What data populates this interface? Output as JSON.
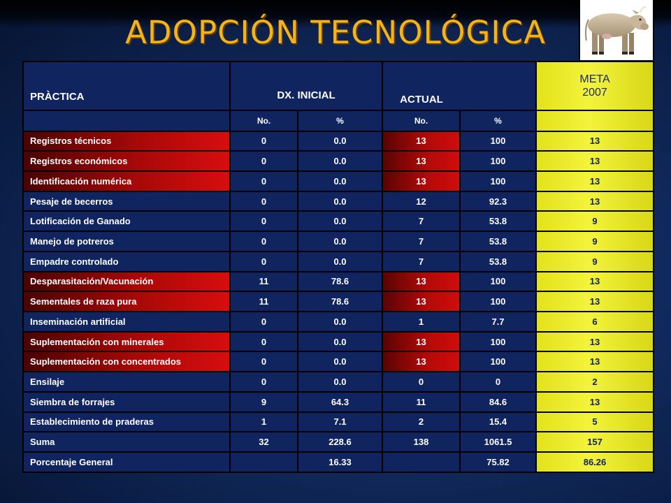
{
  "title": "ADOPCIÓN TECNOLÓGICA",
  "image_alt": "cow-illustration",
  "table": {
    "headers": {
      "practice": "PRÀCTICA",
      "initial": "DX. INICIAL",
      "current": "ACTUAL",
      "goal_line1": "META",
      "goal_line2": "2007"
    },
    "subheaders": [
      "No.",
      "%",
      "No.",
      "%"
    ],
    "rows": [
      {
        "label": "Registros técnicos",
        "dx_no": "0",
        "dx_pct": "0.0",
        "act_no": "13",
        "act_pct": "100",
        "meta": "13",
        "highlight": true
      },
      {
        "label": "Registros económicos",
        "dx_no": "0",
        "dx_pct": "0.0",
        "act_no": "13",
        "act_pct": "100",
        "meta": "13",
        "highlight": true
      },
      {
        "label": "Identificación numérica",
        "dx_no": "0",
        "dx_pct": "0.0",
        "act_no": "13",
        "act_pct": "100",
        "meta": "13",
        "highlight": true
      },
      {
        "label": "Pesaje de becerros",
        "dx_no": "0",
        "dx_pct": "0.0",
        "act_no": "12",
        "act_pct": "92.3",
        "meta": "13",
        "highlight": false
      },
      {
        "label": "Lotificación de Ganado",
        "dx_no": "0",
        "dx_pct": "0.0",
        "act_no": "7",
        "act_pct": "53.8",
        "meta": "9",
        "highlight": false
      },
      {
        "label": "Manejo de potreros",
        "dx_no": "0",
        "dx_pct": "0.0",
        "act_no": "7",
        "act_pct": "53.8",
        "meta": "9",
        "highlight": false
      },
      {
        "label": "Empadre controlado",
        "dx_no": "0",
        "dx_pct": "0.0",
        "act_no": "7",
        "act_pct": "53.8",
        "meta": "9",
        "highlight": false
      },
      {
        "label": "Desparasitación/Vacunación",
        "dx_no": "11",
        "dx_pct": "78.6",
        "act_no": "13",
        "act_pct": "100",
        "meta": "13",
        "highlight": true
      },
      {
        "label": "Sementales de raza pura",
        "dx_no": "11",
        "dx_pct": "78.6",
        "act_no": "13",
        "act_pct": "100",
        "meta": "13",
        "highlight": true
      },
      {
        "label": "Inseminación artificial",
        "dx_no": "0",
        "dx_pct": "0.0",
        "act_no": "1",
        "act_pct": "7.7",
        "meta": "6",
        "highlight": false
      },
      {
        "label": "Suplementación con minerales",
        "dx_no": "0",
        "dx_pct": "0.0",
        "act_no": "13",
        "act_pct": "100",
        "meta": "13",
        "highlight": true
      },
      {
        "label": "Suplementación con concentrados",
        "dx_no": "0",
        "dx_pct": "0.0",
        "act_no": "13",
        "act_pct": "100",
        "meta": "13",
        "highlight": true
      },
      {
        "label": "Ensilaje",
        "dx_no": "0",
        "dx_pct": "0.0",
        "act_no": "0",
        "act_pct": "0",
        "meta": "2",
        "highlight": false
      },
      {
        "label": "Siembra de forrajes",
        "dx_no": "9",
        "dx_pct": "64.3",
        "act_no": "11",
        "act_pct": "84.6",
        "meta": "13",
        "highlight": false
      },
      {
        "label": "Establecimiento de praderas",
        "dx_no": "1",
        "dx_pct": "7.1",
        "act_no": "2",
        "act_pct": "15.4",
        "meta": "5",
        "highlight": false
      },
      {
        "label": "Suma",
        "dx_no": "32",
        "dx_pct": "228.6",
        "act_no": "138",
        "act_pct": "1061.5",
        "meta": "157",
        "highlight": false
      },
      {
        "label": "Porcentaje General",
        "dx_no": "",
        "dx_pct": "16.33",
        "act_no": "",
        "act_pct": "75.82",
        "meta": "86.26",
        "highlight": false
      }
    ]
  },
  "colors": {
    "title": "#f5b316",
    "cell_blue": "#102460",
    "highlight_red": "#c00b0b",
    "meta_yellow": "#eded2a"
  }
}
